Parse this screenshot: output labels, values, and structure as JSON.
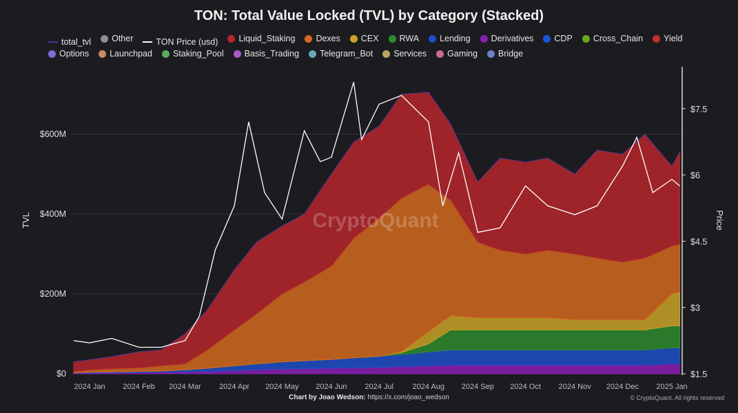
{
  "chart_data": {
    "type": "area",
    "title": "TON: Total Value Locked (TVL) by Category (Stacked)",
    "ylabel": "TVL",
    "y2label": "Price",
    "ylim": [
      0,
      770
    ],
    "y2lim": [
      1.5,
      8.5
    ],
    "yticks": [
      "$0",
      "$200M",
      "$400M",
      "$600M"
    ],
    "yticks_values": [
      0,
      200,
      400,
      600
    ],
    "y2ticks": [
      "$1.5",
      "$3",
      "$4.5",
      "$6",
      "$7.5"
    ],
    "y2ticks_values": [
      1.5,
      3,
      4.5,
      6,
      7.5
    ],
    "xticks": [
      "2024 Jan",
      "2024 Feb",
      "2024 Mar",
      "2024 Apr",
      "2024 May",
      "2024 Jun",
      "2024 Jul",
      "2024 Aug",
      "2024 Sep",
      "2024 Oct",
      "2024 Nov",
      "2024 Dec",
      "2025 Jan"
    ],
    "xticks_dates": [
      "2024-01-01",
      "2024-02-01",
      "2024-03-01",
      "2024-04-01",
      "2024-05-01",
      "2024-06-01",
      "2024-07-01",
      "2024-08-01",
      "2024-09-01",
      "2024-10-01",
      "2024-11-01",
      "2024-12-01",
      "2025-01-01"
    ],
    "grid": true,
    "legend_position": "top",
    "watermark": "CryptoQuant",
    "legend": [
      {
        "name": "total_tvl",
        "color": "#3b3ba8",
        "kind": "line"
      },
      {
        "name": "Other",
        "color": "#8e8e96",
        "kind": "dot"
      },
      {
        "name": "TON Price (usd)",
        "color": "#ffffff",
        "kind": "line"
      },
      {
        "name": "Liquid_Staking",
        "color": "#b5262b",
        "kind": "dot"
      },
      {
        "name": "Dexes",
        "color": "#d2691e",
        "kind": "dot"
      },
      {
        "name": "CEX",
        "color": "#c9a227",
        "kind": "dot"
      },
      {
        "name": "RWA",
        "color": "#2e8b2e",
        "kind": "dot"
      },
      {
        "name": "Lending",
        "color": "#1f4fc8",
        "kind": "dot"
      },
      {
        "name": "Derivatives",
        "color": "#8a1fb5",
        "kind": "dot"
      },
      {
        "name": "CDP",
        "color": "#1a56d6",
        "kind": "dot"
      },
      {
        "name": "Cross_Chain",
        "color": "#6aa81f",
        "kind": "dot"
      },
      {
        "name": "Yield",
        "color": "#c0302c",
        "kind": "dot"
      },
      {
        "name": "Options",
        "color": "#7b6fd6",
        "kind": "dot"
      },
      {
        "name": "Launchpad",
        "color": "#c88b62",
        "kind": "dot"
      },
      {
        "name": "Staking_Pool",
        "color": "#5fa85f",
        "kind": "dot"
      },
      {
        "name": "Basis_Trading",
        "color": "#a55cc4",
        "kind": "dot"
      },
      {
        "name": "Telegram_Bot",
        "color": "#6aa6b8",
        "kind": "dot"
      },
      {
        "name": "Services",
        "color": "#b8a265",
        "kind": "dot"
      },
      {
        "name": "Gaming",
        "color": "#c76a96",
        "kind": "dot"
      },
      {
        "name": "Bridge",
        "color": "#6a84c8",
        "kind": "dot"
      }
    ],
    "x": [
      "2023-12-22",
      "2024-01-01",
      "2024-01-15",
      "2024-02-01",
      "2024-02-15",
      "2024-03-01",
      "2024-03-15",
      "2024-04-01",
      "2024-04-15",
      "2024-05-01",
      "2024-05-15",
      "2024-06-01",
      "2024-06-15",
      "2024-07-01",
      "2024-07-15",
      "2024-08-01",
      "2024-08-15",
      "2024-09-01",
      "2024-09-15",
      "2024-10-01",
      "2024-10-15",
      "2024-11-01",
      "2024-11-15",
      "2024-12-01",
      "2024-12-15",
      "2025-01-01",
      "2025-01-06"
    ],
    "series": [
      {
        "name": "Derivatives",
        "color": "#8a1fb5",
        "values": [
          2,
          2,
          3,
          3,
          4,
          5,
          6,
          8,
          10,
          12,
          13,
          14,
          15,
          16,
          18,
          20,
          22,
          22,
          22,
          22,
          22,
          22,
          22,
          22,
          22,
          25,
          25
        ]
      },
      {
        "name": "Lending",
        "color": "#1f4fc8",
        "values": [
          1,
          2,
          2,
          3,
          3,
          5,
          8,
          12,
          15,
          18,
          20,
          22,
          25,
          28,
          30,
          35,
          38,
          38,
          38,
          38,
          38,
          38,
          38,
          38,
          38,
          40,
          40
        ]
      },
      {
        "name": "RWA",
        "color": "#2e8b2e",
        "values": [
          0,
          0,
          0,
          0,
          0,
          0,
          0,
          0,
          0,
          0,
          0,
          0,
          0,
          0,
          5,
          20,
          50,
          50,
          50,
          50,
          50,
          50,
          50,
          50,
          50,
          55,
          55
        ]
      },
      {
        "name": "CEX",
        "color": "#c9a227",
        "values": [
          0,
          0,
          0,
          0,
          0,
          0,
          0,
          0,
          0,
          0,
          0,
          0,
          0,
          0,
          2,
          30,
          35,
          30,
          30,
          30,
          30,
          25,
          25,
          25,
          25,
          80,
          85
        ]
      },
      {
        "name": "Dexes",
        "color": "#d2691e",
        "values": [
          2,
          6,
          8,
          9,
          13,
          15,
          46,
          90,
          125,
          170,
          197,
          234,
          300,
          346,
          385,
          370,
          290,
          190,
          170,
          160,
          170,
          165,
          155,
          145,
          155,
          120,
          120
        ]
      },
      {
        "name": "Liquid_Staking",
        "color": "#b5262b",
        "values": [
          25,
          25,
          30,
          40,
          40,
          75,
          100,
          150,
          180,
          170,
          170,
          230,
          240,
          230,
          260,
          230,
          190,
          150,
          230,
          230,
          230,
          200,
          270,
          270,
          310,
          200,
          230
        ]
      }
    ],
    "price": {
      "name": "TON Price (usd)",
      "color": "#ffffff",
      "x": [
        "2023-12-22",
        "2024-01-01",
        "2024-01-15",
        "2024-02-01",
        "2024-02-15",
        "2024-03-01",
        "2024-03-10",
        "2024-03-20",
        "2024-04-01",
        "2024-04-10",
        "2024-04-20",
        "2024-05-01",
        "2024-05-15",
        "2024-05-25",
        "2024-06-01",
        "2024-06-15",
        "2024-06-20",
        "2024-07-01",
        "2024-07-15",
        "2024-08-01",
        "2024-08-10",
        "2024-08-20",
        "2024-09-01",
        "2024-09-15",
        "2024-10-01",
        "2024-10-15",
        "2024-11-01",
        "2024-11-15",
        "2024-12-01",
        "2024-12-10",
        "2024-12-20",
        "2025-01-01",
        "2025-01-06"
      ],
      "values": [
        2.25,
        2.2,
        2.3,
        2.1,
        2.1,
        2.25,
        2.8,
        4.3,
        5.3,
        7.2,
        5.6,
        5.0,
        7.0,
        6.3,
        6.4,
        8.1,
        6.8,
        7.6,
        7.8,
        7.2,
        5.3,
        6.5,
        4.7,
        4.8,
        5.75,
        5.3,
        5.1,
        5.3,
        6.2,
        6.85,
        5.6,
        5.9,
        5.75
      ]
    }
  },
  "footer": {
    "credit_label": "Chart by Joao Wedson:",
    "credit_link": "https://x.com/joao_wedson",
    "copyright": "© CryptoQuant. All rights reserved"
  }
}
